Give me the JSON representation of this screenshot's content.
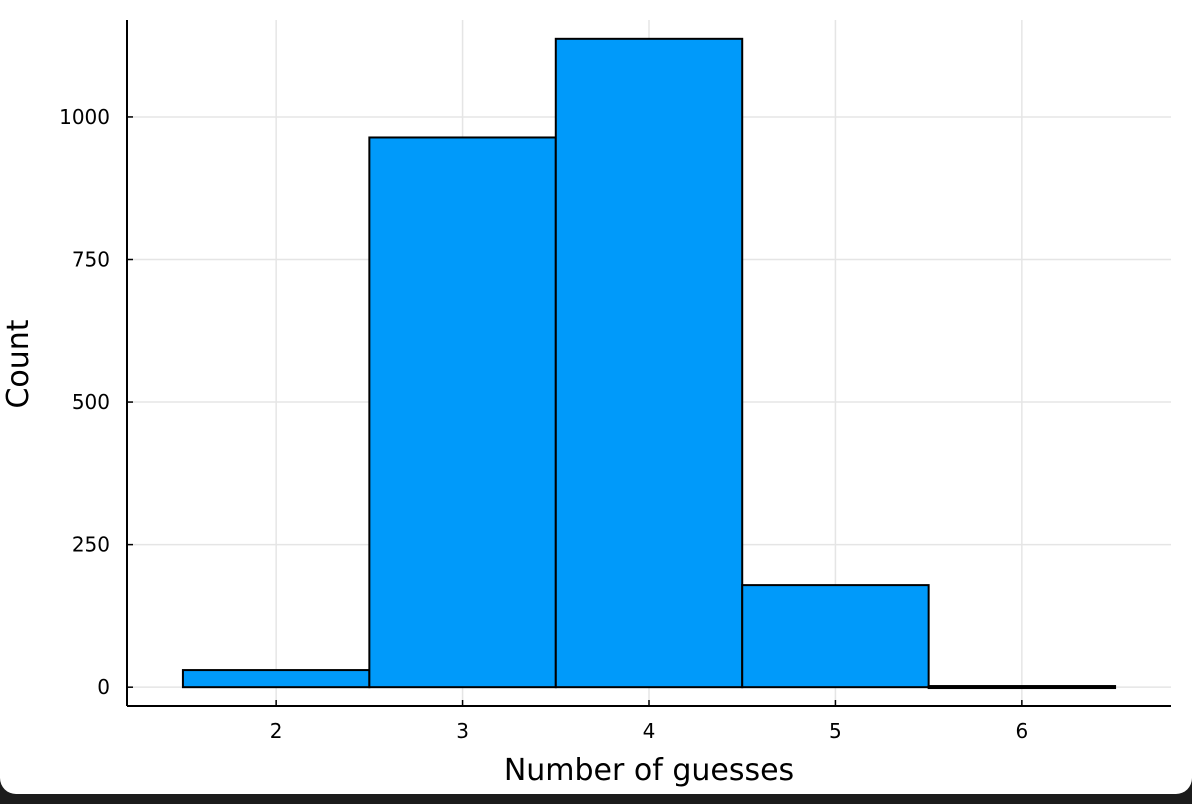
{
  "chart_data": {
    "type": "bar",
    "chart_kind": "histogram",
    "bins": [
      {
        "x_start": 1.5,
        "x_end": 2.5,
        "count": 30
      },
      {
        "x_start": 2.5,
        "x_end": 3.5,
        "count": 964
      },
      {
        "x_start": 3.5,
        "x_end": 4.5,
        "count": 1137
      },
      {
        "x_start": 4.5,
        "x_end": 5.5,
        "count": 179
      },
      {
        "x_start": 5.5,
        "x_end": 6.5,
        "count": 2
      }
    ],
    "x_ticks": [
      2,
      3,
      4,
      5,
      6
    ],
    "y_ticks": [
      0,
      250,
      500,
      750,
      1000
    ],
    "xlabel": "Number of guesses",
    "ylabel": "Count",
    "xlim": [
      1.2,
      6.8
    ],
    "ylim": [
      -33,
      1170
    ],
    "grid": true,
    "legend": "none",
    "colors": {
      "bar_fill": "#009AFA",
      "bar_edge": "#000000",
      "grid": "#e5e5e5",
      "axis": "#000000"
    }
  }
}
